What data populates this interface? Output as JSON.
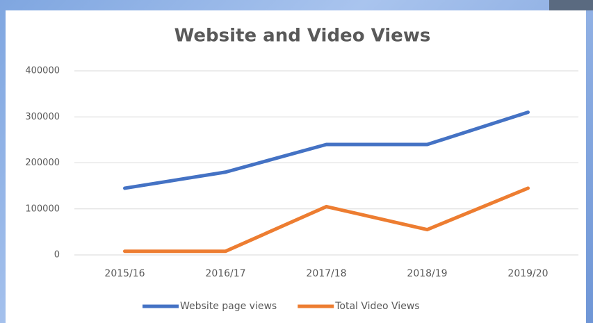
{
  "chart_data": {
    "type": "line",
    "title": "Website and Video Views",
    "categories": [
      "2015/16",
      "2016/17",
      "2017/18",
      "2018/19",
      "2019/20"
    ],
    "series": [
      {
        "name": "Website page views",
        "color": "#4472c4",
        "values": [
          145000,
          180000,
          240000,
          240000,
          310000
        ]
      },
      {
        "name": "Total Video Views",
        "color": "#ed7d31",
        "values": [
          8000,
          8000,
          105000,
          55000,
          145000
        ]
      }
    ],
    "ylim": [
      0,
      400000
    ],
    "yticks": [
      0,
      100000,
      200000,
      300000,
      400000
    ],
    "grid": true,
    "legend": "bottom"
  }
}
